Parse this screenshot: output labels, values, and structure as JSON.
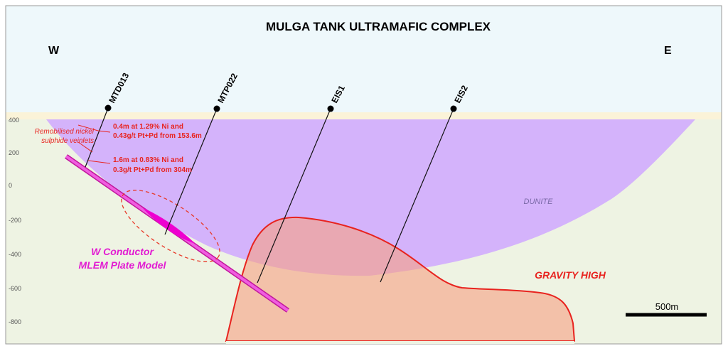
{
  "title": "MULGA TANK ULTRAMAFIC COMPLEX",
  "directions": {
    "west": "W",
    "east": "E"
  },
  "elevation_labels": [
    400,
    200,
    0,
    -200,
    -400,
    -600,
    -800
  ],
  "drill_holes": [
    "MTD013",
    "MTP022",
    "EIS1",
    "EIS2"
  ],
  "annotations": {
    "veinlets": [
      "Remobilised nickel",
      "sulphide veinlets"
    ],
    "intercept_1": [
      "0.4m at 1.29% Ni and",
      "0.43g/t Pt+Pd from 153.6m"
    ],
    "intercept_2": [
      "1.6m at 0.83% Ni and",
      "0.3g/t Pt+Pd from 304m"
    ],
    "conductor": [
      "W Conductor",
      "MLEM Plate Model"
    ]
  },
  "units": {
    "dunite": "DUNITE",
    "gravity": "GRAVITY HIGH"
  },
  "scale_bar": "500m"
}
